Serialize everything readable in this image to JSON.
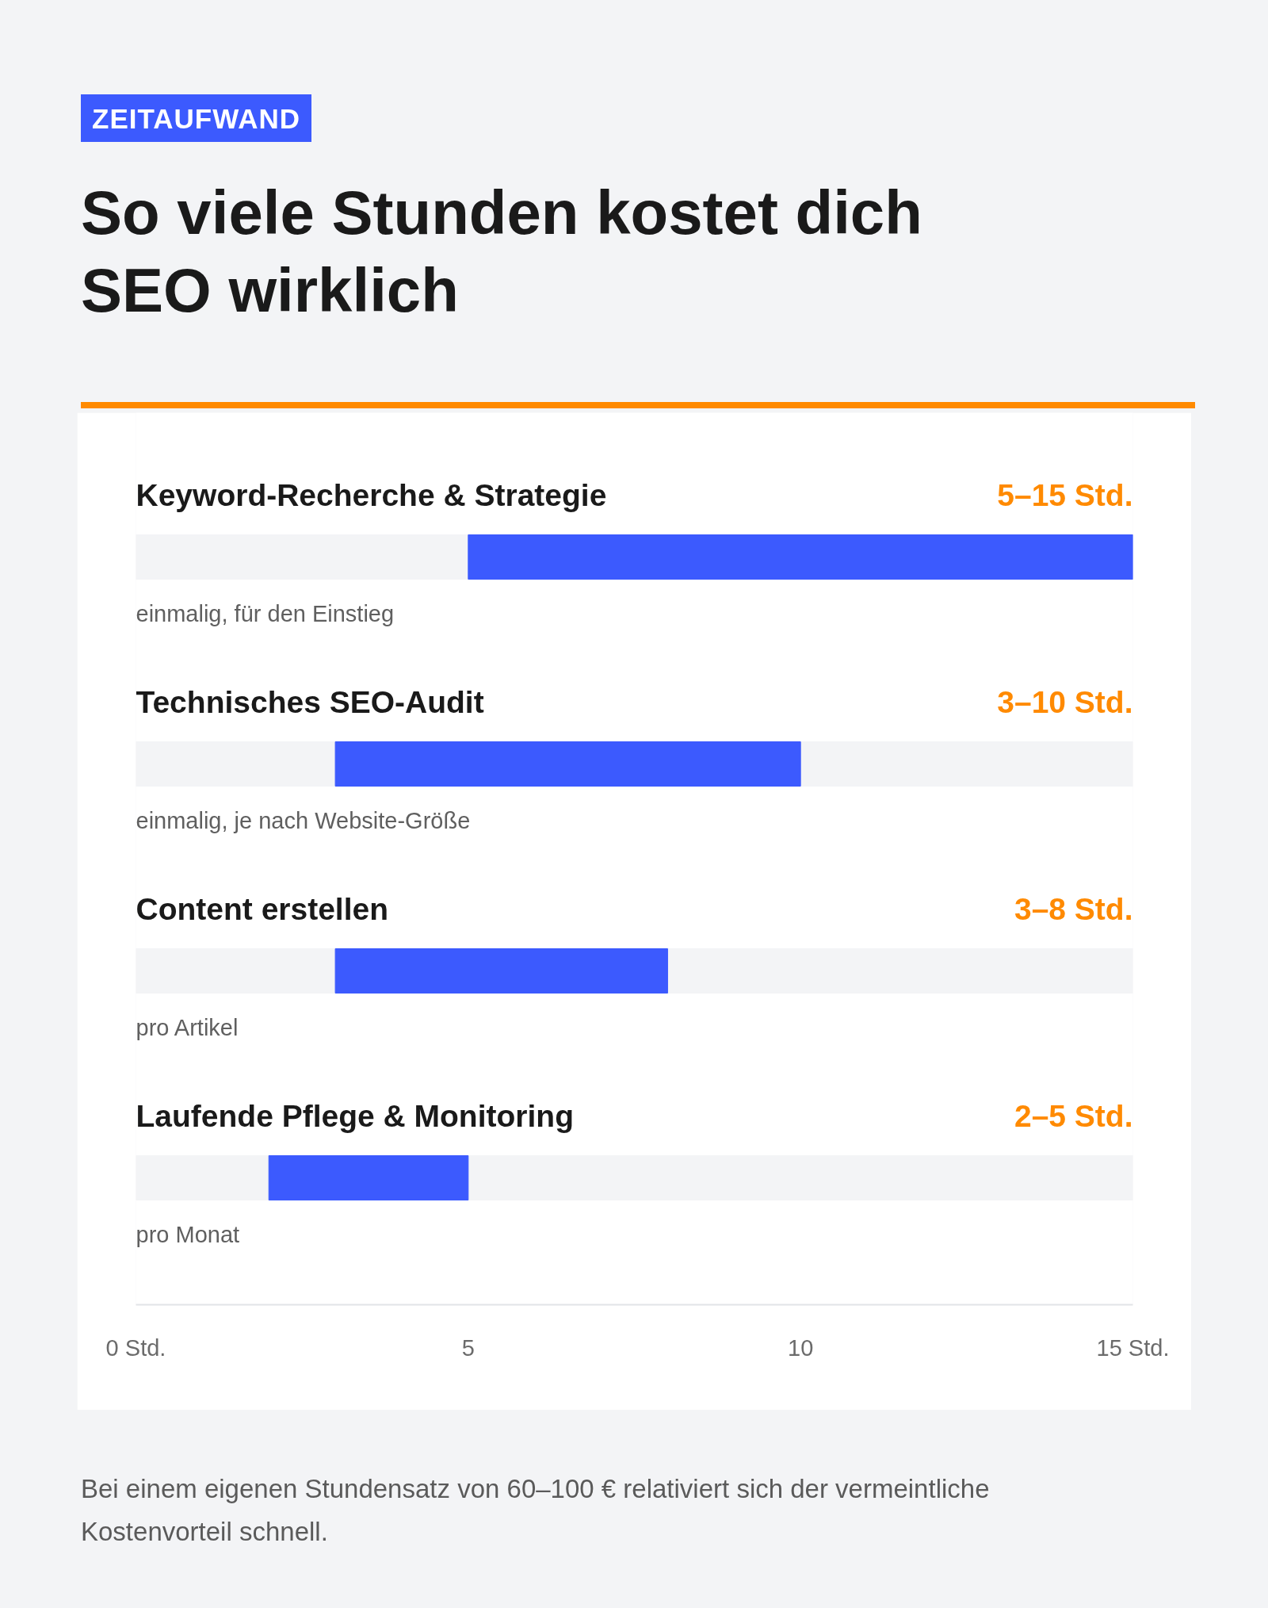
{
  "chart_data": {
    "type": "bar",
    "orientation": "horizontal",
    "subtitle": "ZEITAUFWAND",
    "title": "So viele Stunden kostet dich SEO wirklich",
    "categories": [
      "Keyword-Recherche & Strategie",
      "Technisches SEO-Audit",
      "Content erstellen",
      "Laufende Pflege & Monitoring"
    ],
    "base": [
      5,
      3,
      3,
      2
    ],
    "values": [
      10,
      7,
      5,
      3
    ],
    "color": "#3c5afe",
    "value_labels": [
      "5–15 Std.",
      "3–10 Std.",
      "3–8 Std.",
      "2–5 Std."
    ],
    "xlim": [
      0,
      15
    ],
    "xticks": [
      {
        "value": 0,
        "label": "0 Std."
      },
      5,
      10,
      {
        "value": 15,
        "label": "15 Std."
      }
    ],
    "tick_labels": "x",
    "grid": false,
    "annotations": [
      "einmalig, für den Einstieg",
      "einmalig, je nach Website-Größe",
      "pro Artikel",
      "pro Monat",
      "Bei einem eigenen Stundensatz von 60–100 € relativiert sich der vermeintliche Kostenvorteil schnell."
    ]
  }
}
